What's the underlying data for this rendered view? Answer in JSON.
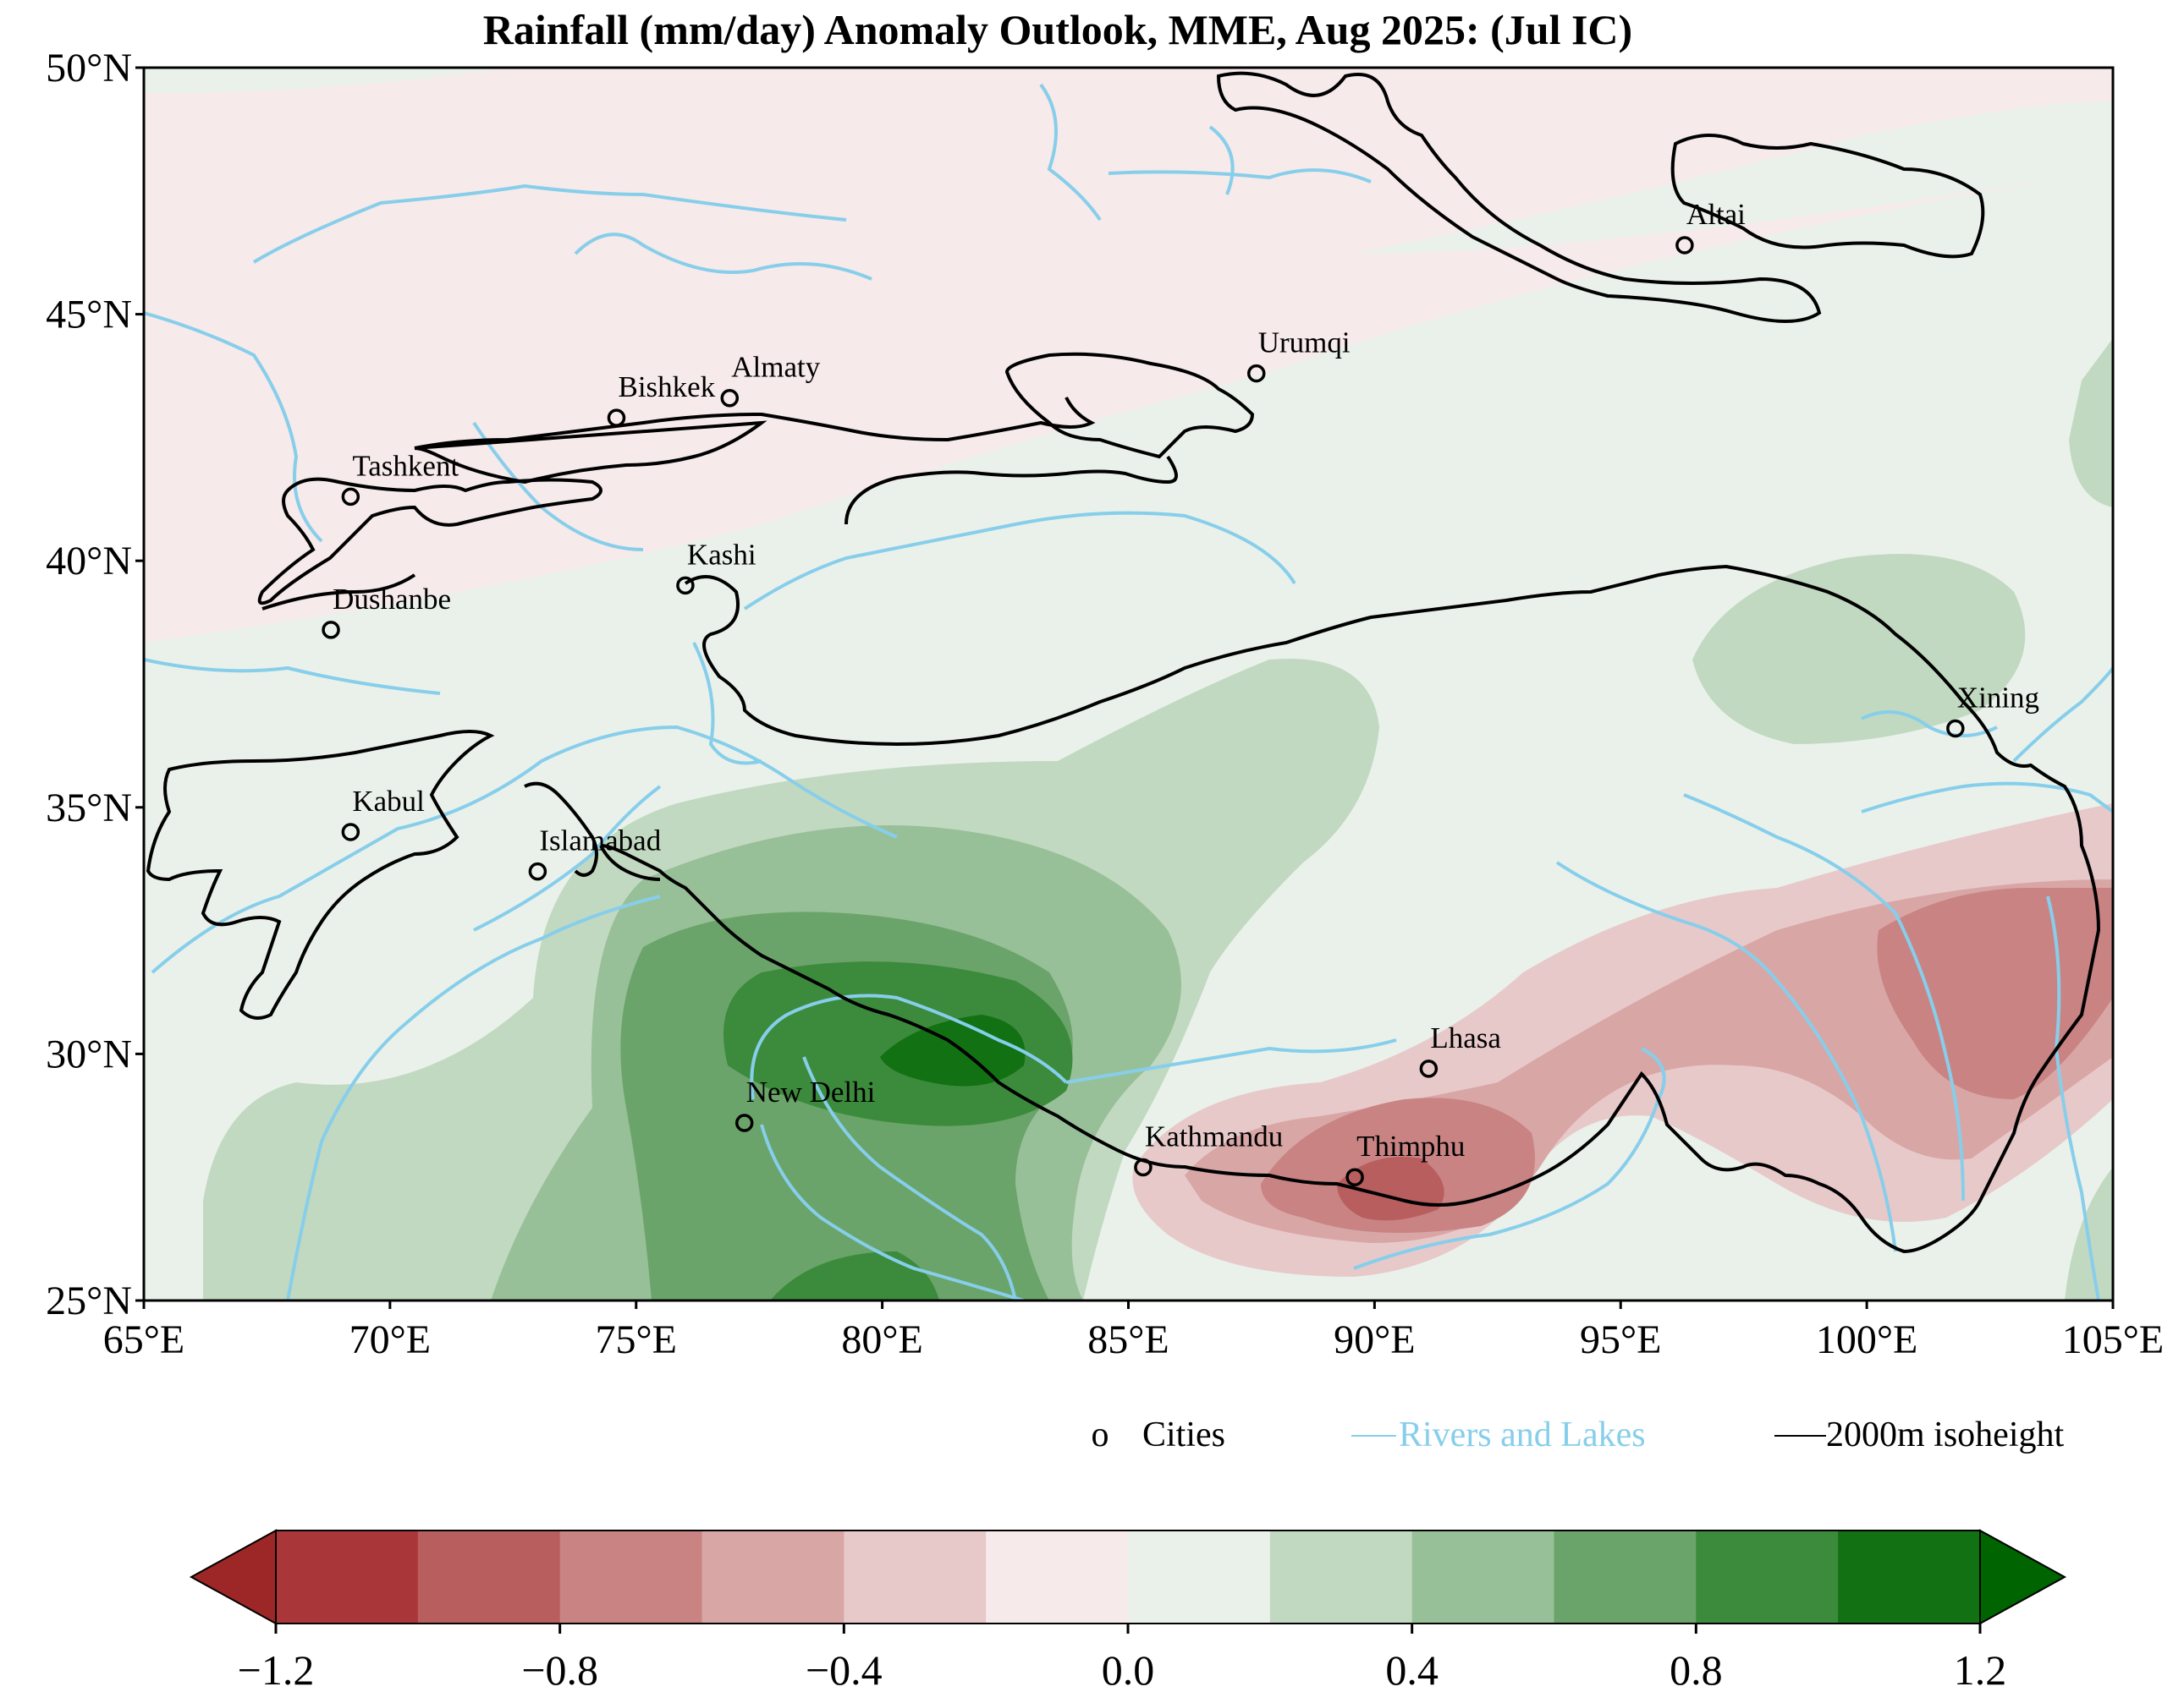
{
  "title": "Rainfall (mm/day) Anomaly Outlook, MME, Aug  2025:  (Jul IC)",
  "map": {
    "x_ticks": [
      "65°E",
      "70°E",
      "75°E",
      "80°E",
      "85°E",
      "90°E",
      "95°E",
      "100°E",
      "105°E"
    ],
    "y_ticks": [
      "50°N",
      "45°N",
      "40°N",
      "35°N",
      "30°N",
      "25°N"
    ],
    "lon_range": [
      65,
      105
    ],
    "lat_range": [
      25,
      50
    ],
    "cities": [
      {
        "name": "Altai",
        "lon": 96.3,
        "lat": 46.4
      },
      {
        "name": "Urumqi",
        "lon": 87.6,
        "lat": 43.8
      },
      {
        "name": "Almaty",
        "lon": 76.9,
        "lat": 43.3
      },
      {
        "name": "Bishkek",
        "lon": 74.6,
        "lat": 42.9
      },
      {
        "name": "Tashkent",
        "lon": 69.2,
        "lat": 41.3
      },
      {
        "name": "Kashi",
        "lon": 76.0,
        "lat": 39.5
      },
      {
        "name": "Dushanbe",
        "lon": 68.8,
        "lat": 38.6
      },
      {
        "name": "Xining",
        "lon": 101.8,
        "lat": 36.6
      },
      {
        "name": "Kabul",
        "lon": 69.2,
        "lat": 34.5
      },
      {
        "name": "Islamabad",
        "lon": 73.0,
        "lat": 33.7
      },
      {
        "name": "Lhasa",
        "lon": 91.1,
        "lat": 29.7
      },
      {
        "name": "New Delhi",
        "lon": 77.2,
        "lat": 28.6
      },
      {
        "name": "Kathmandu",
        "lon": 85.3,
        "lat": 27.7
      },
      {
        "name": "Thimphu",
        "lon": 89.6,
        "lat": 27.5
      }
    ]
  },
  "legend": {
    "cities": "Cities",
    "cities_marker": "o",
    "rivers": "Rivers and Lakes",
    "isoheight": "2000m isoheight"
  },
  "colorbar": {
    "ticks": [
      "−1.2",
      "−0.8",
      "−0.4",
      "0.0",
      "0.4",
      "0.8",
      "1.2"
    ],
    "levels": [
      -1.2,
      -1.0,
      -0.8,
      -0.6,
      -0.4,
      -0.2,
      0.0,
      0.2,
      0.4,
      0.6,
      0.8,
      1.0,
      1.2
    ],
    "colors": [
      "#a9373a",
      "#b85e5f",
      "#c98383",
      "#d9a6a6",
      "#e8c9ca",
      "#f6eaea",
      "#eaf1ea",
      "#c1d9c1",
      "#98c098",
      "#6aa46a",
      "#3c8a3c",
      "#127112"
    ],
    "extend_low": "#9d2626",
    "extend_high": "#006400"
  },
  "colors": {
    "river": "#87ceeb",
    "isoheight": "#000000"
  }
}
